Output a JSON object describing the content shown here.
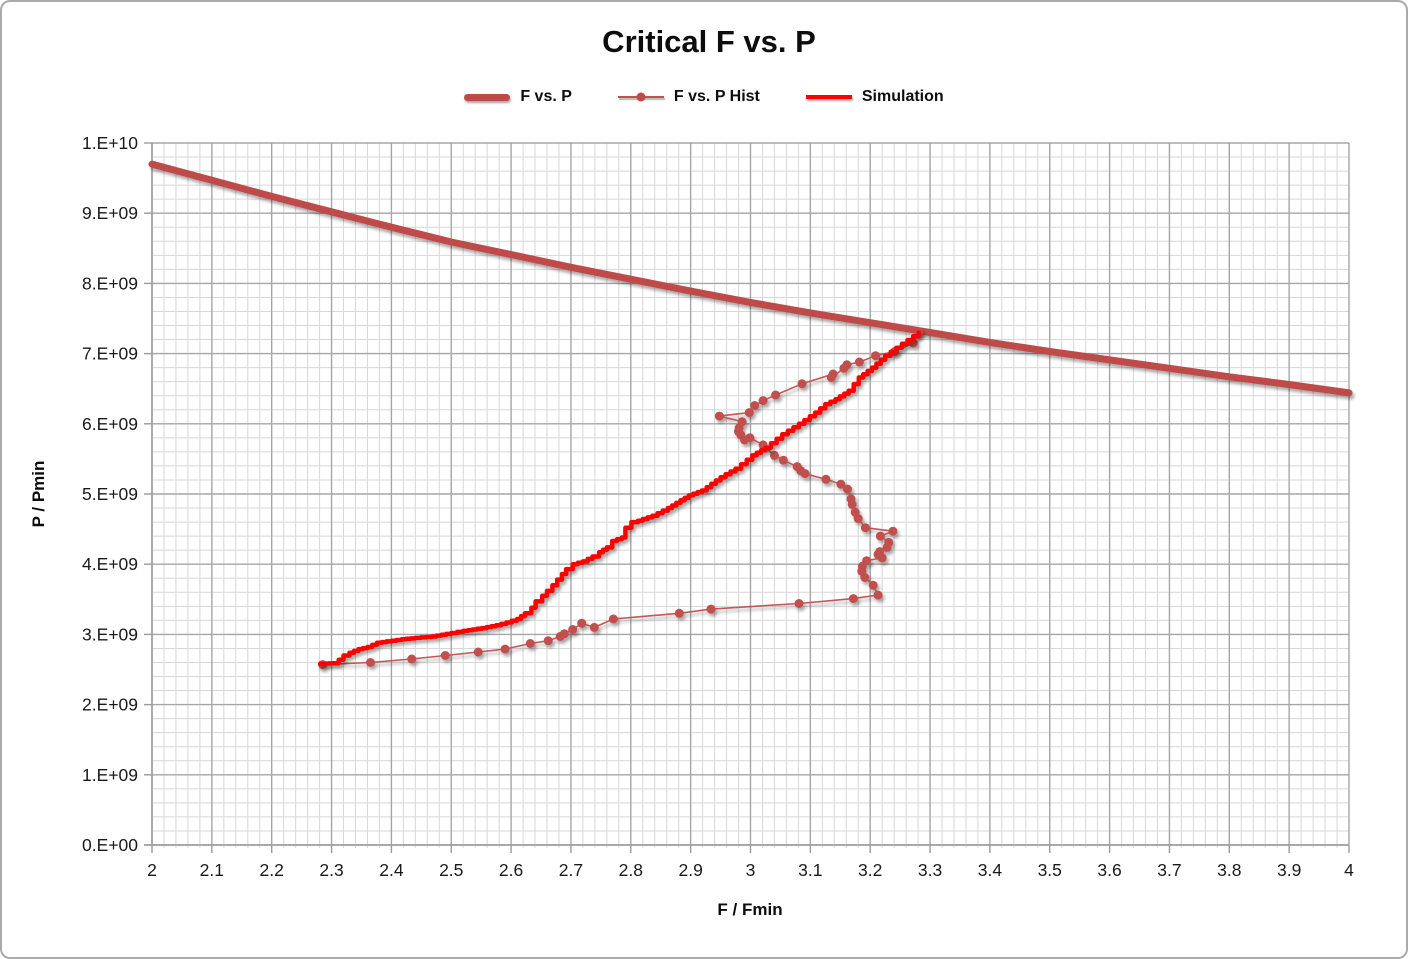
{
  "window": {
    "background": "#ffffff",
    "border_color": "#ababab"
  },
  "chart_data": {
    "type": "line",
    "title": "Critical F vs. P",
    "xlabel": "F / Fmin",
    "ylabel": "P / Pmin",
    "xlim": [
      2,
      4
    ],
    "ylim": [
      0,
      10000000000.0
    ],
    "x_major_step": 0.1,
    "x_minor_step": 0.02,
    "y_major_step": 1000000000.0,
    "y_minor_step": 200000000.0,
    "x_tick_labels": [
      "2",
      "2.1",
      "2.2",
      "2.3",
      "2.4",
      "2.5",
      "2.6",
      "2.7",
      "2.8",
      "2.9",
      "3",
      "3.1",
      "3.2",
      "3.3",
      "3.4",
      "3.5",
      "3.6",
      "3.7",
      "3.8",
      "3.9",
      "4"
    ],
    "y_tick_labels": [
      "0.E+00",
      "1.E+09",
      "2.E+09",
      "3.E+09",
      "4.E+09",
      "5.E+09",
      "6.E+09",
      "7.E+09",
      "8.E+09",
      "9.E+09",
      "1.E+10"
    ],
    "grid": {
      "major_color": "#a6a6a6",
      "minor_color": "#d7d7d7",
      "axis_color": "#9b9b9b"
    },
    "legend": {
      "position": "top"
    },
    "series": [
      {
        "name": "F vs. P",
        "style": "thick-line",
        "color": "#be4b48",
        "width": 7,
        "points": [
          [
            2.0,
            9700000000.0
          ],
          [
            2.1,
            9470000000.0
          ],
          [
            2.2,
            9240000000.0
          ],
          [
            2.3,
            9020000000.0
          ],
          [
            2.4,
            8800000000.0
          ],
          [
            2.5,
            8590000000.0
          ],
          [
            2.6,
            8410000000.0
          ],
          [
            2.7,
            8230000000.0
          ],
          [
            2.8,
            8060000000.0
          ],
          [
            2.9,
            7890000000.0
          ],
          [
            3.0,
            7730000000.0
          ],
          [
            3.1,
            7580000000.0
          ],
          [
            3.2,
            7440000000.0
          ],
          [
            3.3,
            7300000000.0
          ],
          [
            3.4,
            7160000000.0
          ],
          [
            3.5,
            7030000000.0
          ],
          [
            3.6,
            6910000000.0
          ],
          [
            3.7,
            6790000000.0
          ],
          [
            3.8,
            6670000000.0
          ],
          [
            3.9,
            6560000000.0
          ],
          [
            4.0,
            6440000000.0
          ]
        ]
      },
      {
        "name": "F vs. P Hist",
        "style": "line-markers",
        "color": "#c0504d",
        "width": 1.6,
        "marker_radius": 4.5,
        "points": [
          [
            2.285,
            2570000000.0
          ],
          [
            2.365,
            2600000000.0
          ],
          [
            2.434,
            2650000000.0
          ],
          [
            2.49,
            2700000000.0
          ],
          [
            2.545,
            2750000000.0
          ],
          [
            2.59,
            2790000000.0
          ],
          [
            2.632,
            2870000000.0
          ],
          [
            2.662,
            2910000000.0
          ],
          [
            2.682,
            2970000000.0
          ],
          [
            2.689,
            3010000000.0
          ],
          [
            2.703,
            3070000000.0
          ],
          [
            2.718,
            3160000000.0
          ],
          [
            2.739,
            3100000000.0
          ],
          [
            2.771,
            3220000000.0
          ],
          [
            2.881,
            3300000000.0
          ],
          [
            2.934,
            3360000000.0
          ],
          [
            3.081,
            3440000000.0
          ],
          [
            3.172,
            3510000000.0
          ],
          [
            3.213,
            3560000000.0
          ],
          [
            3.205,
            3700000000.0
          ],
          [
            3.191,
            3810000000.0
          ],
          [
            3.186,
            3900000000.0
          ],
          [
            3.187,
            3970000000.0
          ],
          [
            3.194,
            4050000000.0
          ],
          [
            3.22,
            4090000000.0
          ],
          [
            3.213,
            4140000000.0
          ],
          [
            3.216,
            4180000000.0
          ],
          [
            3.228,
            4240000000.0
          ],
          [
            3.231,
            4310000000.0
          ],
          [
            3.217,
            4400000000.0
          ],
          [
            3.238,
            4470000000.0
          ],
          [
            3.192,
            4520000000.0
          ],
          [
            3.18,
            4650000000.0
          ],
          [
            3.175,
            4740000000.0
          ],
          [
            3.17,
            4850000000.0
          ],
          [
            3.168,
            4930000000.0
          ],
          [
            3.162,
            5070000000.0
          ],
          [
            3.151,
            5140000000.0
          ],
          [
            3.126,
            5210000000.0
          ],
          [
            3.091,
            5290000000.0
          ],
          [
            3.084,
            5330000000.0
          ],
          [
            3.078,
            5390000000.0
          ],
          [
            3.055,
            5480000000.0
          ],
          [
            3.04,
            5550000000.0
          ],
          [
            3.021,
            5700000000.0
          ],
          [
            2.999,
            5800000000.0
          ],
          [
            2.99,
            5770000000.0
          ],
          [
            2.984,
            5840000000.0
          ],
          [
            2.98,
            5890000000.0
          ],
          [
            2.981,
            5940000000.0
          ],
          [
            2.986,
            6030000000.0
          ],
          [
            2.948,
            6110000000.0
          ],
          [
            2.998,
            6160000000.0
          ],
          [
            3.007,
            6260000000.0
          ],
          [
            3.021,
            6330000000.0
          ],
          [
            3.042,
            6410000000.0
          ],
          [
            3.086,
            6570000000.0
          ],
          [
            3.138,
            6710000000.0
          ],
          [
            3.135,
            6660000000.0
          ],
          [
            3.156,
            6790000000.0
          ],
          [
            3.161,
            6840000000.0
          ],
          [
            3.182,
            6880000000.0
          ],
          [
            3.209,
            6970000000.0
          ],
          [
            3.241,
            7030000000.0
          ],
          [
            3.272,
            7150000000.0
          ],
          [
            3.281,
            7300000000.0
          ]
        ]
      },
      {
        "name": "Simulation",
        "style": "step-line",
        "color": "#ff0000",
        "width": 4.5,
        "points": [
          [
            2.281,
            2580000000.0
          ],
          [
            2.302,
            2590000000.0
          ],
          [
            2.312,
            2640000000.0
          ],
          [
            2.32,
            2700000000.0
          ],
          [
            2.33,
            2740000000.0
          ],
          [
            2.345,
            2790000000.0
          ],
          [
            2.36,
            2820000000.0
          ],
          [
            2.376,
            2880000000.0
          ],
          [
            2.392,
            2900000000.0
          ],
          [
            2.417,
            2930000000.0
          ],
          [
            2.44,
            2950000000.0
          ],
          [
            2.467,
            2970000000.0
          ],
          [
            2.5,
            3020000000.0
          ],
          [
            2.52,
            3050000000.0
          ],
          [
            2.551,
            3090000000.0
          ],
          [
            2.575,
            3130000000.0
          ],
          [
            2.592,
            3170000000.0
          ],
          [
            2.61,
            3220000000.0
          ],
          [
            2.623,
            3300000000.0
          ],
          [
            2.634,
            3380000000.0
          ],
          [
            2.641,
            3470000000.0
          ],
          [
            2.652,
            3550000000.0
          ],
          [
            2.66,
            3620000000.0
          ],
          [
            2.669,
            3700000000.0
          ],
          [
            2.677,
            3780000000.0
          ],
          [
            2.685,
            3860000000.0
          ],
          [
            2.692,
            3930000000.0
          ],
          [
            2.703,
            4000000000.0
          ],
          [
            2.72,
            4040000000.0
          ],
          [
            2.736,
            4110000000.0
          ],
          [
            2.747,
            4170000000.0
          ],
          [
            2.76,
            4240000000.0
          ],
          [
            2.769,
            4330000000.0
          ],
          [
            2.785,
            4380000000.0
          ],
          [
            2.791,
            4520000000.0
          ],
          [
            2.801,
            4600000000.0
          ],
          [
            2.812,
            4620000000.0
          ],
          [
            2.836,
            4690000000.0
          ],
          [
            2.862,
            4800000000.0
          ],
          [
            2.883,
            4910000000.0
          ],
          [
            2.897,
            4980000000.0
          ],
          [
            2.919,
            5050000000.0
          ],
          [
            2.95,
            5240000000.0
          ],
          [
            2.975,
            5360000000.0
          ],
          [
            3.003,
            5550000000.0
          ],
          [
            3.025,
            5660000000.0
          ],
          [
            3.053,
            5850000000.0
          ],
          [
            3.081,
            6000000000.0
          ],
          [
            3.108,
            6160000000.0
          ],
          [
            3.125,
            6280000000.0
          ],
          [
            3.142,
            6350000000.0
          ],
          [
            3.164,
            6470000000.0
          ],
          [
            3.181,
            6660000000.0
          ],
          [
            3.203,
            6800000000.0
          ],
          [
            3.225,
            6970000000.0
          ],
          [
            3.253,
            7140000000.0
          ],
          [
            3.281,
            7300000000.0
          ]
        ]
      }
    ]
  }
}
